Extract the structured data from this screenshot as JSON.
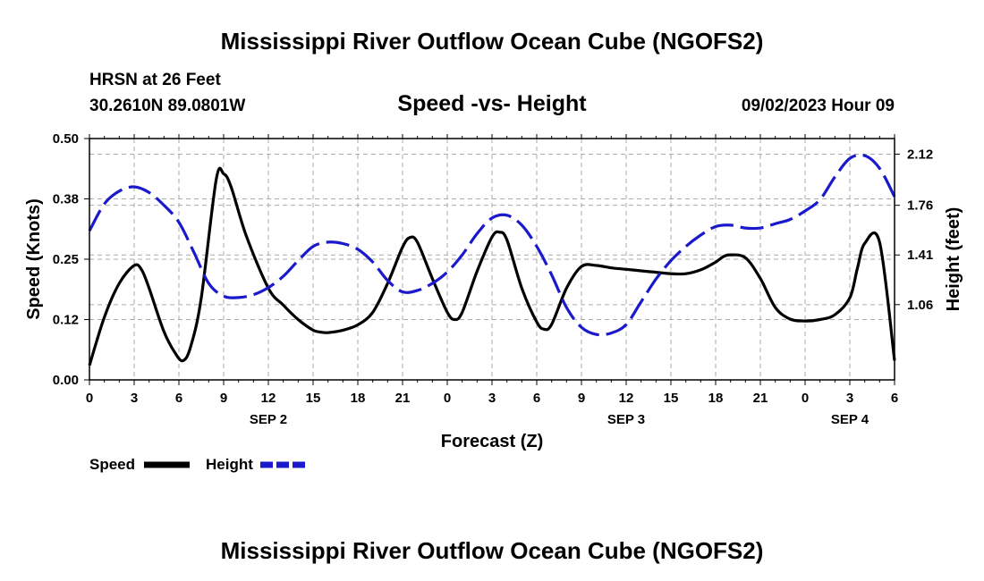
{
  "title": "Mississippi River Outflow Ocean Cube (NGOFS2)",
  "station": "HRSN at 26 Feet",
  "location": "30.2610N  89.0801W",
  "subtitle": "Speed -vs- Height",
  "timestamp": "09/02/2023 Hour 09",
  "footer_title": "Mississippi River Outflow Ocean Cube (NGOFS2)",
  "colors": {
    "speed": "#000000",
    "height": "#1a1acc",
    "grid": "#aaaaaa"
  },
  "chart_data": {
    "type": "line",
    "title": "Speed -vs- Height",
    "xlabel": "Forecast (Z)",
    "ylabel": "Speed (Knots)",
    "ylabel_right": "Height (feet)",
    "x_range": [
      0,
      54
    ],
    "x_ticks": [
      0,
      3,
      6,
      9,
      12,
      15,
      18,
      21,
      24,
      27,
      30,
      33,
      36,
      39,
      42,
      45,
      48,
      51,
      54
    ],
    "x_tick_labels": [
      "0",
      "3",
      "6",
      "9",
      "12",
      "15",
      "18",
      "21",
      "0",
      "3",
      "6",
      "9",
      "12",
      "15",
      "18",
      "21",
      "0",
      "3",
      "6"
    ],
    "date_labels": [
      {
        "x": 12,
        "label": "SEP 2"
      },
      {
        "x": 36,
        "label": "SEP 3"
      },
      {
        "x": 51,
        "label": "SEP 4"
      }
    ],
    "ylim": [
      0,
      0.5
    ],
    "y_ticks": [
      0,
      0.125,
      0.25,
      0.375,
      0.5
    ],
    "y_tick_labels": [
      "0.00",
      "0.12",
      "0.25",
      "0.38",
      "0.50"
    ],
    "ylim_right": [
      0.53,
      2.23
    ],
    "y_ticks_right": [
      1.06,
      1.41,
      1.76,
      2.12
    ],
    "y_tick_labels_right": [
      "1.06",
      "1.41",
      "1.76",
      "2.12"
    ],
    "grid": true,
    "legend": "bottom-left",
    "series": [
      {
        "name": "Speed",
        "axis": "left",
        "style": "solid",
        "x": [
          0,
          1,
          2,
          3,
          3.5,
          4,
          5,
          5.8,
          6.3,
          6.8,
          7.5,
          8.5,
          9,
          9.5,
          10.5,
          12,
          13,
          14,
          15,
          15.5,
          16,
          17,
          18,
          19,
          20,
          21,
          21.5,
          22,
          23,
          24,
          24.5,
          25,
          26,
          27,
          27.5,
          28,
          29,
          30,
          30.5,
          31,
          32,
          33,
          34,
          35,
          36,
          37,
          38,
          39,
          40,
          41,
          42,
          42.5,
          43,
          44,
          45,
          46,
          47,
          48,
          49,
          50,
          51,
          51.5,
          52,
          53,
          54
        ],
        "values": [
          0.03,
          0.13,
          0.2,
          0.237,
          0.228,
          0.19,
          0.1,
          0.053,
          0.04,
          0.07,
          0.17,
          0.415,
          0.427,
          0.4,
          0.3,
          0.19,
          0.155,
          0.125,
          0.103,
          0.099,
          0.098,
          0.103,
          0.114,
          0.14,
          0.2,
          0.275,
          0.295,
          0.285,
          0.21,
          0.14,
          0.125,
          0.14,
          0.225,
          0.296,
          0.306,
          0.29,
          0.19,
          0.12,
          0.105,
          0.115,
          0.19,
          0.235,
          0.237,
          0.232,
          0.229,
          0.226,
          0.223,
          0.22,
          0.22,
          0.228,
          0.244,
          0.255,
          0.259,
          0.253,
          0.21,
          0.15,
          0.126,
          0.122,
          0.125,
          0.135,
          0.17,
          0.23,
          0.283,
          0.285,
          0.04
        ]
      },
      {
        "name": "Height",
        "axis": "right",
        "style": "dashed",
        "x": [
          0,
          1,
          2,
          3,
          4,
          5,
          6,
          7,
          8,
          9,
          10,
          11,
          12,
          13,
          14,
          15,
          16,
          17,
          18,
          19,
          20,
          21,
          22,
          23,
          24,
          25,
          26,
          27,
          28,
          29,
          30,
          31,
          32,
          33,
          34,
          35,
          36,
          37,
          38,
          39,
          40,
          41,
          42,
          43,
          44,
          45,
          46,
          47,
          48,
          49,
          50,
          51,
          52,
          53,
          54
        ],
        "values": [
          1.58,
          1.77,
          1.86,
          1.89,
          1.85,
          1.76,
          1.64,
          1.43,
          1.21,
          1.12,
          1.11,
          1.13,
          1.18,
          1.26,
          1.37,
          1.47,
          1.5,
          1.49,
          1.45,
          1.36,
          1.23,
          1.15,
          1.16,
          1.21,
          1.29,
          1.41,
          1.56,
          1.67,
          1.69,
          1.62,
          1.47,
          1.27,
          1.04,
          0.9,
          0.85,
          0.86,
          0.92,
          1.08,
          1.24,
          1.37,
          1.47,
          1.55,
          1.61,
          1.62,
          1.6,
          1.6,
          1.63,
          1.66,
          1.72,
          1.8,
          1.96,
          2.09,
          2.11,
          2.02,
          1.82
        ]
      }
    ]
  }
}
